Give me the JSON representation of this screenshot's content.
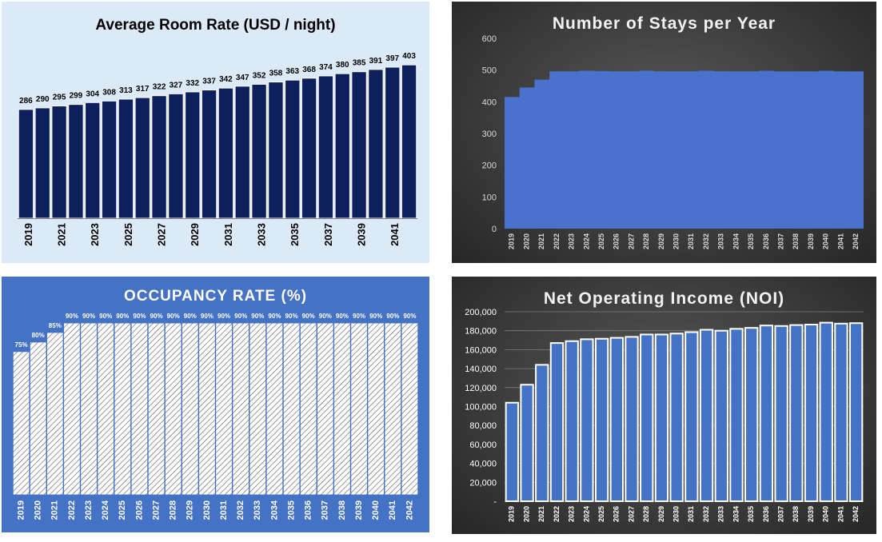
{
  "colors": {
    "navy": "#0d1f5c",
    "blue": "#4472c4",
    "area_fill": "#4a72cc",
    "light_panel": "#dce9f7",
    "dark_panel": "#3a3a3a"
  },
  "chart_data": [
    {
      "type": "bar",
      "title": "Average Room Rate (USD / night)",
      "categories": [
        "2019",
        "2020",
        "2021",
        "2022",
        "2023",
        "2024",
        "2025",
        "2026",
        "2027",
        "2028",
        "2029",
        "2030",
        "2031",
        "2032",
        "2033",
        "2034",
        "2035",
        "2036",
        "2037",
        "2038",
        "2039",
        "2040",
        "2041",
        "2042"
      ],
      "x_tick_labels": [
        "2019",
        "2021",
        "2023",
        "2025",
        "2027",
        "2029",
        "2031",
        "2033",
        "2035",
        "2037",
        "2039",
        "2041"
      ],
      "values": [
        286,
        290,
        295,
        299,
        304,
        308,
        313,
        317,
        322,
        327,
        332,
        337,
        342,
        347,
        352,
        358,
        363,
        368,
        374,
        380,
        385,
        391,
        397,
        403
      ],
      "data_labels": true,
      "ylim": [
        0,
        460
      ],
      "color": "#0d1f5c",
      "grid": false
    },
    {
      "type": "area",
      "title": "Number of Stays per Year",
      "categories": [
        "2019",
        "2020",
        "2021",
        "2022",
        "2023",
        "2024",
        "2025",
        "2026",
        "2027",
        "2028",
        "2029",
        "2030",
        "2031",
        "2032",
        "2033",
        "2034",
        "2035",
        "2036",
        "2037",
        "2038",
        "2039",
        "2040",
        "2041",
        "2042"
      ],
      "values": [
        415,
        445,
        470,
        496,
        496,
        498,
        497,
        496,
        496,
        498,
        496,
        496,
        496,
        498,
        496,
        496,
        496,
        498,
        496,
        496,
        496,
        498,
        496,
        496
      ],
      "ylim": [
        0,
        600
      ],
      "yticks": [
        0,
        100,
        200,
        300,
        400,
        500,
        600
      ],
      "color": "#4a72cc",
      "grid": false
    },
    {
      "type": "bar",
      "title": "OCCUPANCY RATE (%)",
      "categories": [
        "2019",
        "2020",
        "2021",
        "2022",
        "2023",
        "2024",
        "2025",
        "2026",
        "2027",
        "2028",
        "2029",
        "2030",
        "2031",
        "2032",
        "2033",
        "2034",
        "2035",
        "2036",
        "2037",
        "2038",
        "2039",
        "2040",
        "2041",
        "2042"
      ],
      "values": [
        75,
        80,
        85,
        90,
        90,
        90,
        90,
        90,
        90,
        90,
        90,
        90,
        90,
        90,
        90,
        90,
        90,
        90,
        90,
        90,
        90,
        90,
        90,
        90
      ],
      "value_labels": [
        "75%",
        "80%",
        "85%",
        "90%",
        "90%",
        "90%",
        "90%",
        "90%",
        "90%",
        "90%",
        "90%",
        "90%",
        "90%",
        "90%",
        "90%",
        "90%",
        "90%",
        "90%",
        "90%",
        "90%",
        "90%",
        "90%",
        "90%",
        "90%"
      ],
      "data_labels": true,
      "ylim": [
        0,
        103
      ],
      "pattern": "hatched",
      "grid": false
    },
    {
      "type": "bar",
      "title": "Net Operating Income (NOI)",
      "categories": [
        "2019",
        "2020",
        "2021",
        "2022",
        "2023",
        "2024",
        "2025",
        "2026",
        "2027",
        "2028",
        "2029",
        "2030",
        "2031",
        "2032",
        "2033",
        "2034",
        "2035",
        "2036",
        "2037",
        "2038",
        "2039",
        "2040",
        "2041",
        "2042"
      ],
      "values": [
        104000,
        123000,
        144000,
        167000,
        169000,
        171000,
        171500,
        172500,
        173500,
        176000,
        176000,
        177000,
        178500,
        181000,
        180000,
        182000,
        183000,
        185500,
        185000,
        186000,
        186500,
        188500,
        187500,
        188000
      ],
      "ylim": [
        0,
        200000
      ],
      "yticks": [
        0,
        20000,
        40000,
        60000,
        80000,
        100000,
        120000,
        140000,
        160000,
        180000,
        200000
      ],
      "ytick_labels": [
        "-",
        "20,000",
        "40,000",
        "60,000",
        "80,000",
        "100,000",
        "120,000",
        "140,000",
        "160,000",
        "180,000",
        "200,000"
      ],
      "color": "#4472c4",
      "grid": true
    }
  ]
}
